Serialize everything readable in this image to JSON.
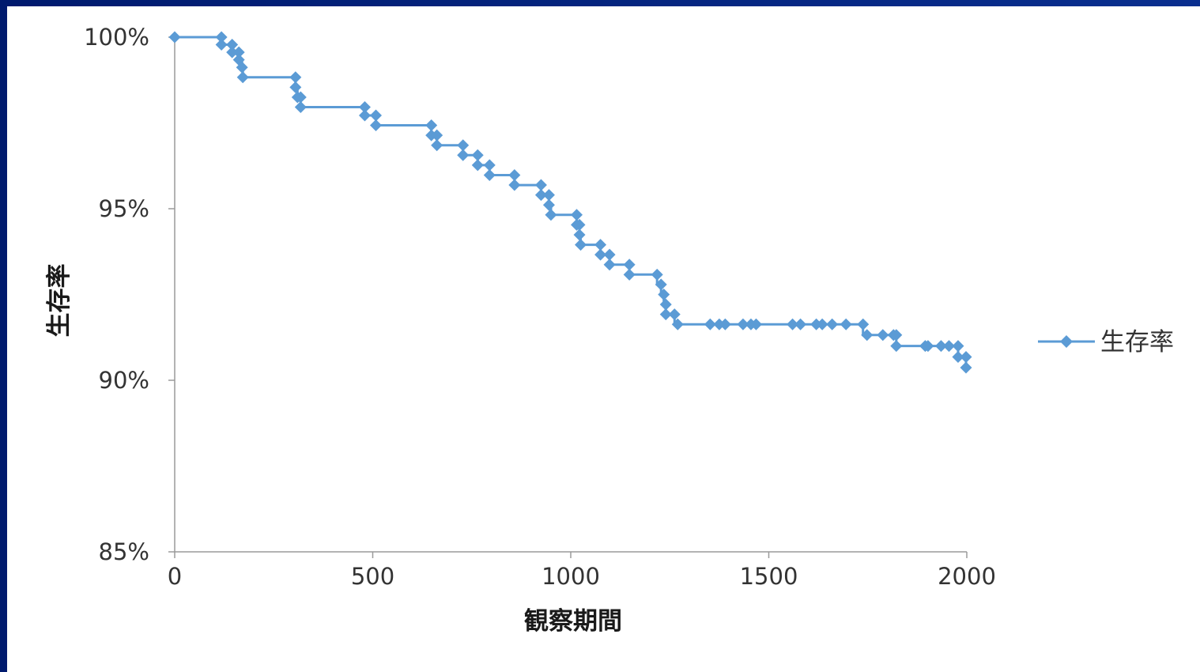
{
  "chart_data": {
    "type": "line",
    "title": "",
    "xlabel": "観察期間",
    "ylabel": "生存率",
    "xlim": [
      0,
      2000
    ],
    "ylim": [
      85,
      100
    ],
    "x_ticks": [
      "0",
      "500",
      "1000",
      "1500",
      "2000"
    ],
    "y_ticks": [
      "100%",
      "95%",
      "90%",
      "85%"
    ],
    "grid": false,
    "legend_position": "right",
    "step": true,
    "series": [
      {
        "name": "生存率",
        "color": "#5b9bd5",
        "marker": "diamond",
        "points": [
          [
            0,
            100.0
          ],
          [
            118,
            100.0
          ],
          [
            118,
            99.78
          ],
          [
            145,
            99.78
          ],
          [
            145,
            99.56
          ],
          [
            162,
            99.56
          ],
          [
            162,
            99.34
          ],
          [
            170,
            99.34
          ],
          [
            170,
            99.12
          ],
          [
            172,
            99.12
          ],
          [
            172,
            98.83
          ],
          [
            305,
            98.83
          ],
          [
            305,
            98.54
          ],
          [
            310,
            98.54
          ],
          [
            310,
            98.25
          ],
          [
            318,
            98.25
          ],
          [
            318,
            97.96
          ],
          [
            480,
            97.96
          ],
          [
            480,
            97.72
          ],
          [
            508,
            97.72
          ],
          [
            508,
            97.43
          ],
          [
            648,
            97.43
          ],
          [
            648,
            97.14
          ],
          [
            662,
            97.14
          ],
          [
            662,
            96.85
          ],
          [
            728,
            96.85
          ],
          [
            728,
            96.56
          ],
          [
            765,
            96.56
          ],
          [
            765,
            96.27
          ],
          [
            795,
            96.27
          ],
          [
            795,
            95.98
          ],
          [
            858,
            95.98
          ],
          [
            858,
            95.69
          ],
          [
            925,
            95.69
          ],
          [
            925,
            95.4
          ],
          [
            945,
            95.4
          ],
          [
            945,
            95.11
          ],
          [
            950,
            95.11
          ],
          [
            950,
            94.82
          ],
          [
            1015,
            94.82
          ],
          [
            1015,
            94.53
          ],
          [
            1022,
            94.53
          ],
          [
            1022,
            94.24
          ],
          [
            1025,
            94.24
          ],
          [
            1025,
            93.95
          ],
          [
            1075,
            93.95
          ],
          [
            1075,
            93.66
          ],
          [
            1098,
            93.66
          ],
          [
            1098,
            93.37
          ],
          [
            1148,
            93.37
          ],
          [
            1148,
            93.08
          ],
          [
            1218,
            93.08
          ],
          [
            1218,
            92.79
          ],
          [
            1228,
            92.79
          ],
          [
            1228,
            92.5
          ],
          [
            1235,
            92.5
          ],
          [
            1235,
            92.21
          ],
          [
            1240,
            92.21
          ],
          [
            1240,
            91.92
          ],
          [
            1262,
            91.92
          ],
          [
            1262,
            91.63
          ],
          [
            1270,
            91.63
          ],
          [
            1270,
            91.63
          ],
          [
            1352,
            91.63
          ],
          [
            1375,
            91.63
          ],
          [
            1390,
            91.63
          ],
          [
            1435,
            91.63
          ],
          [
            1455,
            91.63
          ],
          [
            1468,
            91.63
          ],
          [
            1560,
            91.63
          ],
          [
            1580,
            91.63
          ],
          [
            1620,
            91.63
          ],
          [
            1635,
            91.63
          ],
          [
            1660,
            91.63
          ],
          [
            1695,
            91.63
          ],
          [
            1738,
            91.63
          ],
          [
            1738,
            91.32
          ],
          [
            1748,
            91.32
          ],
          [
            1788,
            91.32
          ],
          [
            1815,
            91.32
          ],
          [
            1822,
            91.32
          ],
          [
            1822,
            91.0
          ],
          [
            1895,
            91.0
          ],
          [
            1902,
            91.0
          ],
          [
            1935,
            91.0
          ],
          [
            1955,
            91.0
          ],
          [
            1978,
            91.0
          ],
          [
            1978,
            90.68
          ],
          [
            1998,
            90.68
          ],
          [
            1998,
            90.37
          ]
        ],
        "markers": [
          [
            0,
            100.0
          ],
          [
            118,
            100.0
          ],
          [
            118,
            99.78
          ],
          [
            145,
            99.78
          ],
          [
            145,
            99.56
          ],
          [
            162,
            99.56
          ],
          [
            162,
            99.34
          ],
          [
            170,
            99.12
          ],
          [
            172,
            98.83
          ],
          [
            305,
            98.83
          ],
          [
            305,
            98.54
          ],
          [
            310,
            98.25
          ],
          [
            318,
            98.25
          ],
          [
            318,
            97.96
          ],
          [
            480,
            97.96
          ],
          [
            480,
            97.72
          ],
          [
            508,
            97.72
          ],
          [
            508,
            97.43
          ],
          [
            648,
            97.43
          ],
          [
            648,
            97.14
          ],
          [
            662,
            97.14
          ],
          [
            662,
            96.85
          ],
          [
            728,
            96.85
          ],
          [
            728,
            96.56
          ],
          [
            765,
            96.56
          ],
          [
            765,
            96.27
          ],
          [
            795,
            96.27
          ],
          [
            795,
            95.98
          ],
          [
            858,
            95.98
          ],
          [
            858,
            95.69
          ],
          [
            925,
            95.69
          ],
          [
            925,
            95.4
          ],
          [
            945,
            95.4
          ],
          [
            945,
            95.11
          ],
          [
            950,
            94.82
          ],
          [
            1015,
            94.82
          ],
          [
            1015,
            94.53
          ],
          [
            1022,
            94.53
          ],
          [
            1022,
            94.24
          ],
          [
            1025,
            93.95
          ],
          [
            1075,
            93.95
          ],
          [
            1075,
            93.66
          ],
          [
            1098,
            93.66
          ],
          [
            1098,
            93.37
          ],
          [
            1148,
            93.37
          ],
          [
            1148,
            93.08
          ],
          [
            1218,
            93.08
          ],
          [
            1228,
            92.79
          ],
          [
            1235,
            92.5
          ],
          [
            1240,
            92.21
          ],
          [
            1240,
            91.92
          ],
          [
            1262,
            91.92
          ],
          [
            1270,
            91.63
          ],
          [
            1352,
            91.63
          ],
          [
            1375,
            91.63
          ],
          [
            1390,
            91.63
          ],
          [
            1435,
            91.63
          ],
          [
            1455,
            91.63
          ],
          [
            1468,
            91.63
          ],
          [
            1560,
            91.63
          ],
          [
            1580,
            91.63
          ],
          [
            1620,
            91.63
          ],
          [
            1635,
            91.63
          ],
          [
            1660,
            91.63
          ],
          [
            1695,
            91.63
          ],
          [
            1738,
            91.63
          ],
          [
            1748,
            91.32
          ],
          [
            1788,
            91.32
          ],
          [
            1815,
            91.32
          ],
          [
            1822,
            91.32
          ],
          [
            1822,
            91.0
          ],
          [
            1895,
            91.0
          ],
          [
            1902,
            91.0
          ],
          [
            1935,
            91.0
          ],
          [
            1955,
            91.0
          ],
          [
            1978,
            91.0
          ],
          [
            1978,
            90.68
          ],
          [
            1998,
            90.68
          ],
          [
            1998,
            90.37
          ]
        ]
      }
    ]
  },
  "colors": {
    "frame": "#0b2a7a",
    "panel": "#ffffff",
    "axis": "#9a9a9a",
    "series": "#5b9bd5"
  }
}
